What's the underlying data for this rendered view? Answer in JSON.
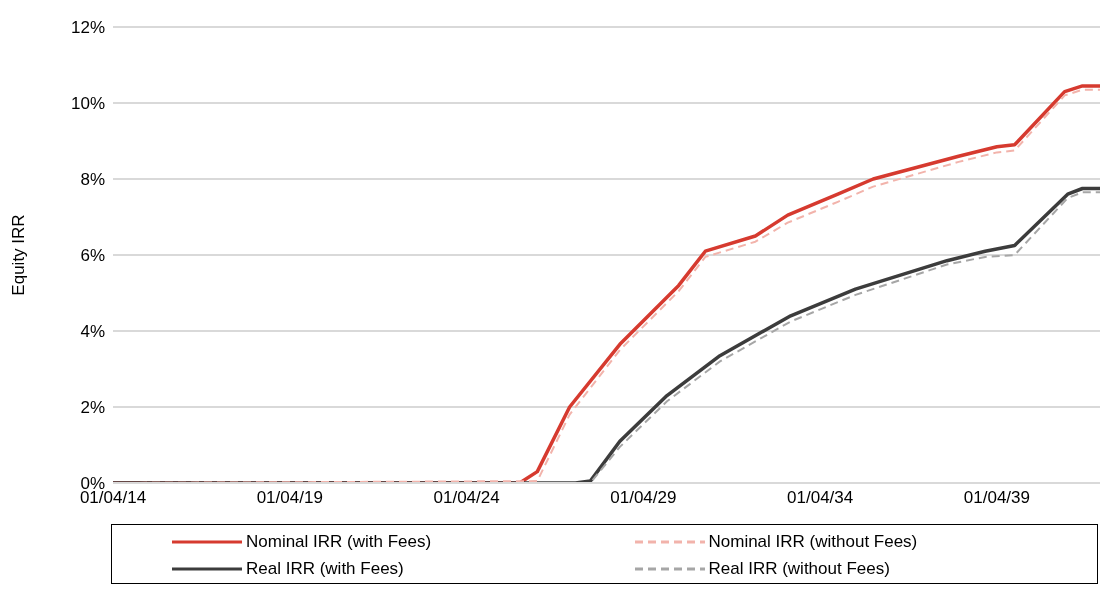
{
  "chart_data": {
    "type": "line",
    "ylabel": "Equity IRR",
    "xlim": [
      "2014-04-01",
      "2042-03-01"
    ],
    "xticks": [
      {
        "value": "2014-04-01",
        "label": "01/04/14"
      },
      {
        "value": "2019-04-01",
        "label": "01/04/19"
      },
      {
        "value": "2024-04-01",
        "label": "01/04/24"
      },
      {
        "value": "2029-04-01",
        "label": "01/04/29"
      },
      {
        "value": "2034-04-01",
        "label": "01/04/34"
      },
      {
        "value": "2039-04-01",
        "label": "01/04/39"
      }
    ],
    "ylim": [
      0,
      12
    ],
    "yticks": [
      {
        "value": 0,
        "label": "0%"
      },
      {
        "value": 2,
        "label": "2%"
      },
      {
        "value": 4,
        "label": "4%"
      },
      {
        "value": 6,
        "label": "6%"
      },
      {
        "value": 8,
        "label": "8%"
      },
      {
        "value": 10,
        "label": "10%"
      },
      {
        "value": 12,
        "label": "12%"
      }
    ],
    "grid": "y",
    "legend": "bottom",
    "marker": "none",
    "series": [
      {
        "name": "Nominal IRR (with Fees)",
        "color": "#d63a2f",
        "line_style": "solid",
        "x": [
          "2014-04-01",
          "2025-10-01",
          "2026-04-01",
          "2027-03-01",
          "2028-08-01",
          "2030-04-01",
          "2031-01-01",
          "2032-06-01",
          "2033-05-01",
          "2034-10-01",
          "2035-10-01",
          "2038-03-01",
          "2039-04-01",
          "2039-10-01",
          "2041-03-01",
          "2041-09-01",
          "2042-03-01"
        ],
        "values": [
          0,
          0,
          0.3,
          2.0,
          3.65,
          5.2,
          6.1,
          6.5,
          7.05,
          7.6,
          8.0,
          8.6,
          8.85,
          8.9,
          10.3,
          10.45,
          10.45
        ]
      },
      {
        "name": "Nominal IRR (without Fees)",
        "color": "#f2b3ab",
        "line_style": "dashed",
        "x": [
          "2014-04-01",
          "2026-04-01",
          "2027-03-01",
          "2028-08-01",
          "2030-04-01",
          "2031-01-01",
          "2032-06-01",
          "2033-05-01",
          "2034-10-01",
          "2035-10-01",
          "2038-03-01",
          "2039-04-01",
          "2039-10-01",
          "2041-03-01",
          "2041-09-01",
          "2042-03-01"
        ],
        "values": [
          0,
          0.05,
          1.8,
          3.5,
          5.05,
          5.95,
          6.35,
          6.85,
          7.4,
          7.8,
          8.45,
          8.7,
          8.75,
          10.2,
          10.35,
          10.35
        ]
      },
      {
        "name": "Real IRR (with Fees)",
        "color": "#3c3c3c",
        "line_style": "solid",
        "x": [
          "2014-04-01",
          "2027-05-01",
          "2027-10-01",
          "2028-08-01",
          "2029-12-01",
          "2031-06-01",
          "2033-06-01",
          "2035-04-01",
          "2037-11-01",
          "2038-12-01",
          "2039-10-01",
          "2041-04-01",
          "2041-09-01",
          "2042-03-01"
        ],
        "values": [
          0,
          0,
          0.05,
          1.1,
          2.3,
          3.35,
          4.4,
          5.1,
          5.85,
          6.1,
          6.25,
          7.6,
          7.75,
          7.75
        ]
      },
      {
        "name": "Real IRR (without Fees)",
        "color": "#a6a6a6",
        "line_style": "dashed",
        "x": [
          "2014-04-01",
          "2027-10-01",
          "2028-08-01",
          "2029-12-01",
          "2031-06-01",
          "2033-06-01",
          "2035-04-01",
          "2037-11-01",
          "2038-12-01",
          "2039-10-01",
          "2041-04-01",
          "2041-09-01",
          "2042-03-01"
        ],
        "values": [
          0,
          0,
          0.95,
          2.15,
          3.2,
          4.25,
          4.95,
          5.75,
          5.95,
          6.0,
          7.5,
          7.65,
          7.65
        ]
      }
    ]
  }
}
